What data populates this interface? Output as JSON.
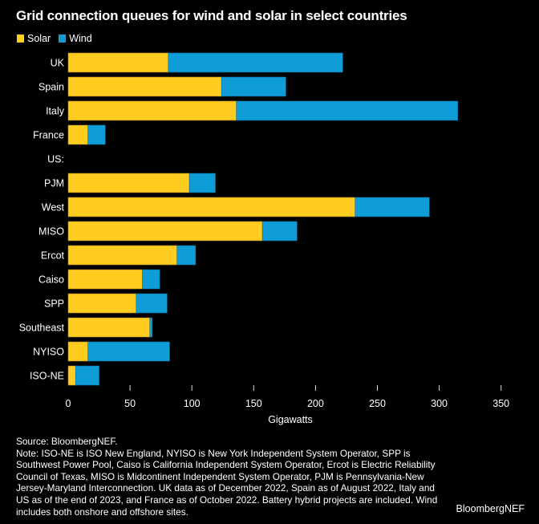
{
  "chart_data": {
    "type": "bar",
    "orientation": "horizontal",
    "stacked": true,
    "title": "Grid connection queues for wind and solar in select countries",
    "xlabel": "Gigawatts",
    "ylabel": "",
    "xlim": [
      0,
      350
    ],
    "xticks": [
      0,
      50,
      100,
      150,
      200,
      250,
      300,
      350
    ],
    "grid": false,
    "legend_position": "top-left",
    "categories": [
      "UK",
      "Spain",
      "Italy",
      "France",
      "US:",
      "PJM",
      "West",
      "MISO",
      "Ercot",
      "Caiso",
      "SPP",
      "Southeast",
      "NYISO",
      "ISO-NE"
    ],
    "series": [
      {
        "name": "Solar",
        "color": "#FFCC1F",
        "values": [
          81,
          124,
          136,
          16,
          null,
          98,
          232,
          157,
          88,
          60,
          55,
          66,
          16,
          6
        ]
      },
      {
        "name": "Wind",
        "color": "#0F9DD8",
        "values": [
          141,
          52,
          179,
          14,
          null,
          21,
          60,
          28,
          15,
          14,
          25,
          2,
          66,
          19
        ]
      }
    ]
  },
  "footnote": {
    "source": "Source: BloombergNEF.",
    "note": "Note: ISO-NE is ISO New England, NYISO is New York Independent System Operator, SPP is Southwest Power Pool, Caiso is California Independent System Operator, Ercot is Electric Reliability Council of Texas, MISO is Midcontinent Independent System Operator, PJM is Pennsylvania-New Jersey-Maryland Interconnection. UK data as of December 2022, Spain as of August 2022, Italy and US as of the end of 2023, and France as of October 2022. Battery hybrid projects are included. Wind includes both onshore and offshore sites."
  },
  "brand": "BloombergNEF"
}
